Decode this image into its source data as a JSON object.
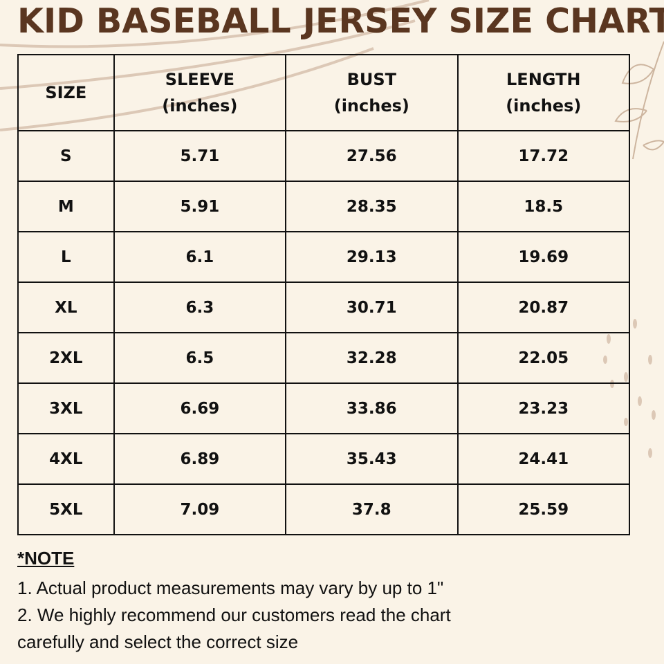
{
  "title": "KID BASEBALL JERSEY SIZE CHART",
  "table": {
    "headers": [
      {
        "line1": "SIZE",
        "line2": ""
      },
      {
        "line1": "SLEEVE",
        "line2": "(inches)"
      },
      {
        "line1": "BUST",
        "line2": "(inches)"
      },
      {
        "line1": "LENGTH",
        "line2": "(inches)"
      }
    ],
    "rows": [
      [
        "S",
        "5.71",
        "27.56",
        "17.72"
      ],
      [
        "M",
        "5.91",
        "28.35",
        "18.5"
      ],
      [
        "L",
        "6.1",
        "29.13",
        "19.69"
      ],
      [
        "XL",
        "6.3",
        "30.71",
        "20.87"
      ],
      [
        "2XL",
        "6.5",
        "32.28",
        "22.05"
      ],
      [
        "3XL",
        "6.69",
        "33.86",
        "23.23"
      ],
      [
        "4XL",
        "6.89",
        "35.43",
        "24.41"
      ],
      [
        "5XL",
        "7.09",
        "37.8",
        "25.59"
      ]
    ]
  },
  "note": {
    "heading": "*NOTE",
    "lines": [
      "1. Actual product measurements may vary by up to 1\"",
      "2. We highly recommend our customers read the chart",
      "carefully and select the correct size"
    ]
  },
  "colors": {
    "background": "#faf3e7",
    "title": "#5a3620",
    "decoration": "#d9c3b0"
  }
}
